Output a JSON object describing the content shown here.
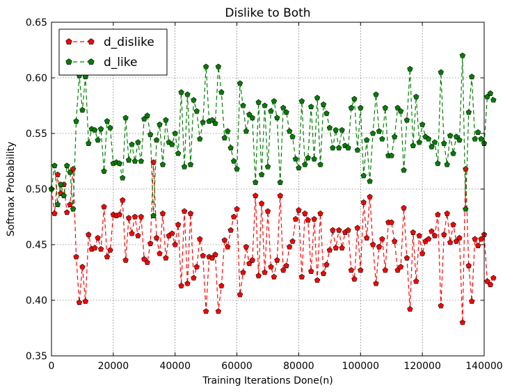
{
  "chart_data": {
    "type": "line",
    "title": "Dislike to Both",
    "xlabel": "Training Iterations Done(n)",
    "ylabel": "Softmax Probability",
    "xlim": [
      0,
      140000
    ],
    "ylim": [
      0.35,
      0.65
    ],
    "xticks": [
      0,
      20000,
      40000,
      60000,
      80000,
      100000,
      120000,
      140000
    ],
    "xtick_labels": [
      "0",
      "20000",
      "40000",
      "60000",
      "80000",
      "100000",
      "120000",
      "140000"
    ],
    "yticks": [
      0.35,
      0.4,
      0.45,
      0.5,
      0.55,
      0.6,
      0.65
    ],
    "ytick_labels": [
      "0.35",
      "0.40",
      "0.45",
      "0.50",
      "0.55",
      "0.60",
      "0.65"
    ],
    "grid": true,
    "legend_position": "top-left",
    "x_step": 1000,
    "series": [
      {
        "name": "d_dislike",
        "color": "#ff0000",
        "marker": "pentagon",
        "line_style": "dashed",
        "values": [
          0.5,
          0.478,
          0.513,
          0.496,
          0.504,
          0.479,
          0.486,
          0.518,
          0.439,
          0.398,
          0.43,
          0.399,
          0.459,
          0.446,
          0.447,
          0.456,
          0.446,
          0.484,
          0.439,
          0.445,
          0.477,
          0.476,
          0.477,
          0.49,
          0.436,
          0.474,
          0.46,
          0.475,
          0.458,
          0.475,
          0.437,
          0.434,
          0.451,
          0.524,
          0.456,
          0.442,
          0.478,
          0.438,
          0.458,
          0.46,
          0.45,
          0.468,
          0.413,
          0.48,
          0.415,
          0.478,
          0.42,
          0.43,
          0.455,
          0.44,
          0.39,
          0.439,
          0.438,
          0.441,
          0.39,
          0.413,
          0.454,
          0.448,
          0.463,
          0.475,
          0.482,
          0.405,
          0.425,
          0.448,
          0.433,
          0.436,
          0.494,
          0.422,
          0.487,
          0.425,
          0.48,
          0.43,
          0.421,
          0.436,
          0.494,
          0.427,
          0.431,
          0.448,
          0.453,
          0.473,
          0.481,
          0.421,
          0.478,
          0.472,
          0.426,
          0.473,
          0.418,
          0.478,
          0.424,
          0.432,
          0.445,
          0.463,
          0.447,
          0.463,
          0.447,
          0.461,
          0.463,
          0.427,
          0.419,
          0.465,
          0.427,
          0.488,
          0.456,
          0.493,
          0.45,
          0.415,
          0.448,
          0.455,
          0.427,
          0.47,
          0.47,
          0.453,
          0.427,
          0.43,
          0.483,
          0.438,
          0.392,
          0.461,
          0.417,
          0.458,
          0.442,
          0.453,
          0.455,
          0.462,
          0.458,
          0.477,
          0.395,
          0.459,
          0.478,
          0.452,
          0.468,
          0.453,
          0.456,
          0.38,
          0.518,
          0.431,
          0.399,
          0.455,
          0.449,
          0.455,
          0.459,
          0.417,
          0.414,
          0.42
        ]
      },
      {
        "name": "d_like",
        "color": "#007f00",
        "marker": "pentagon",
        "line_style": "dashed",
        "values": [
          0.5,
          0.521,
          0.486,
          0.504,
          0.494,
          0.521,
          0.515,
          0.482,
          0.561,
          0.602,
          0.571,
          0.601,
          0.541,
          0.554,
          0.553,
          0.544,
          0.554,
          0.516,
          0.561,
          0.555,
          0.523,
          0.524,
          0.523,
          0.51,
          0.564,
          0.526,
          0.54,
          0.525,
          0.542,
          0.525,
          0.563,
          0.566,
          0.549,
          0.476,
          0.544,
          0.558,
          0.522,
          0.562,
          0.542,
          0.54,
          0.55,
          0.532,
          0.587,
          0.52,
          0.585,
          0.522,
          0.58,
          0.57,
          0.545,
          0.56,
          0.61,
          0.561,
          0.562,
          0.559,
          0.61,
          0.587,
          0.546,
          0.552,
          0.537,
          0.525,
          0.518,
          0.595,
          0.575,
          0.552,
          0.567,
          0.564,
          0.506,
          0.578,
          0.513,
          0.575,
          0.52,
          0.57,
          0.579,
          0.564,
          0.506,
          0.573,
          0.569,
          0.552,
          0.547,
          0.527,
          0.519,
          0.579,
          0.522,
          0.528,
          0.574,
          0.527,
          0.582,
          0.522,
          0.576,
          0.568,
          0.555,
          0.537,
          0.553,
          0.537,
          0.553,
          0.539,
          0.537,
          0.573,
          0.581,
          0.535,
          0.573,
          0.512,
          0.544,
          0.507,
          0.55,
          0.585,
          0.552,
          0.545,
          0.573,
          0.53,
          0.53,
          0.547,
          0.573,
          0.57,
          0.517,
          0.562,
          0.608,
          0.539,
          0.583,
          0.542,
          0.558,
          0.547,
          0.545,
          0.538,
          0.542,
          0.523,
          0.605,
          0.541,
          0.522,
          0.548,
          0.532,
          0.547,
          0.544,
          0.62,
          0.482,
          0.569,
          0.601,
          0.545,
          0.551,
          0.545,
          0.541,
          0.583,
          0.586,
          0.58
        ]
      }
    ]
  }
}
